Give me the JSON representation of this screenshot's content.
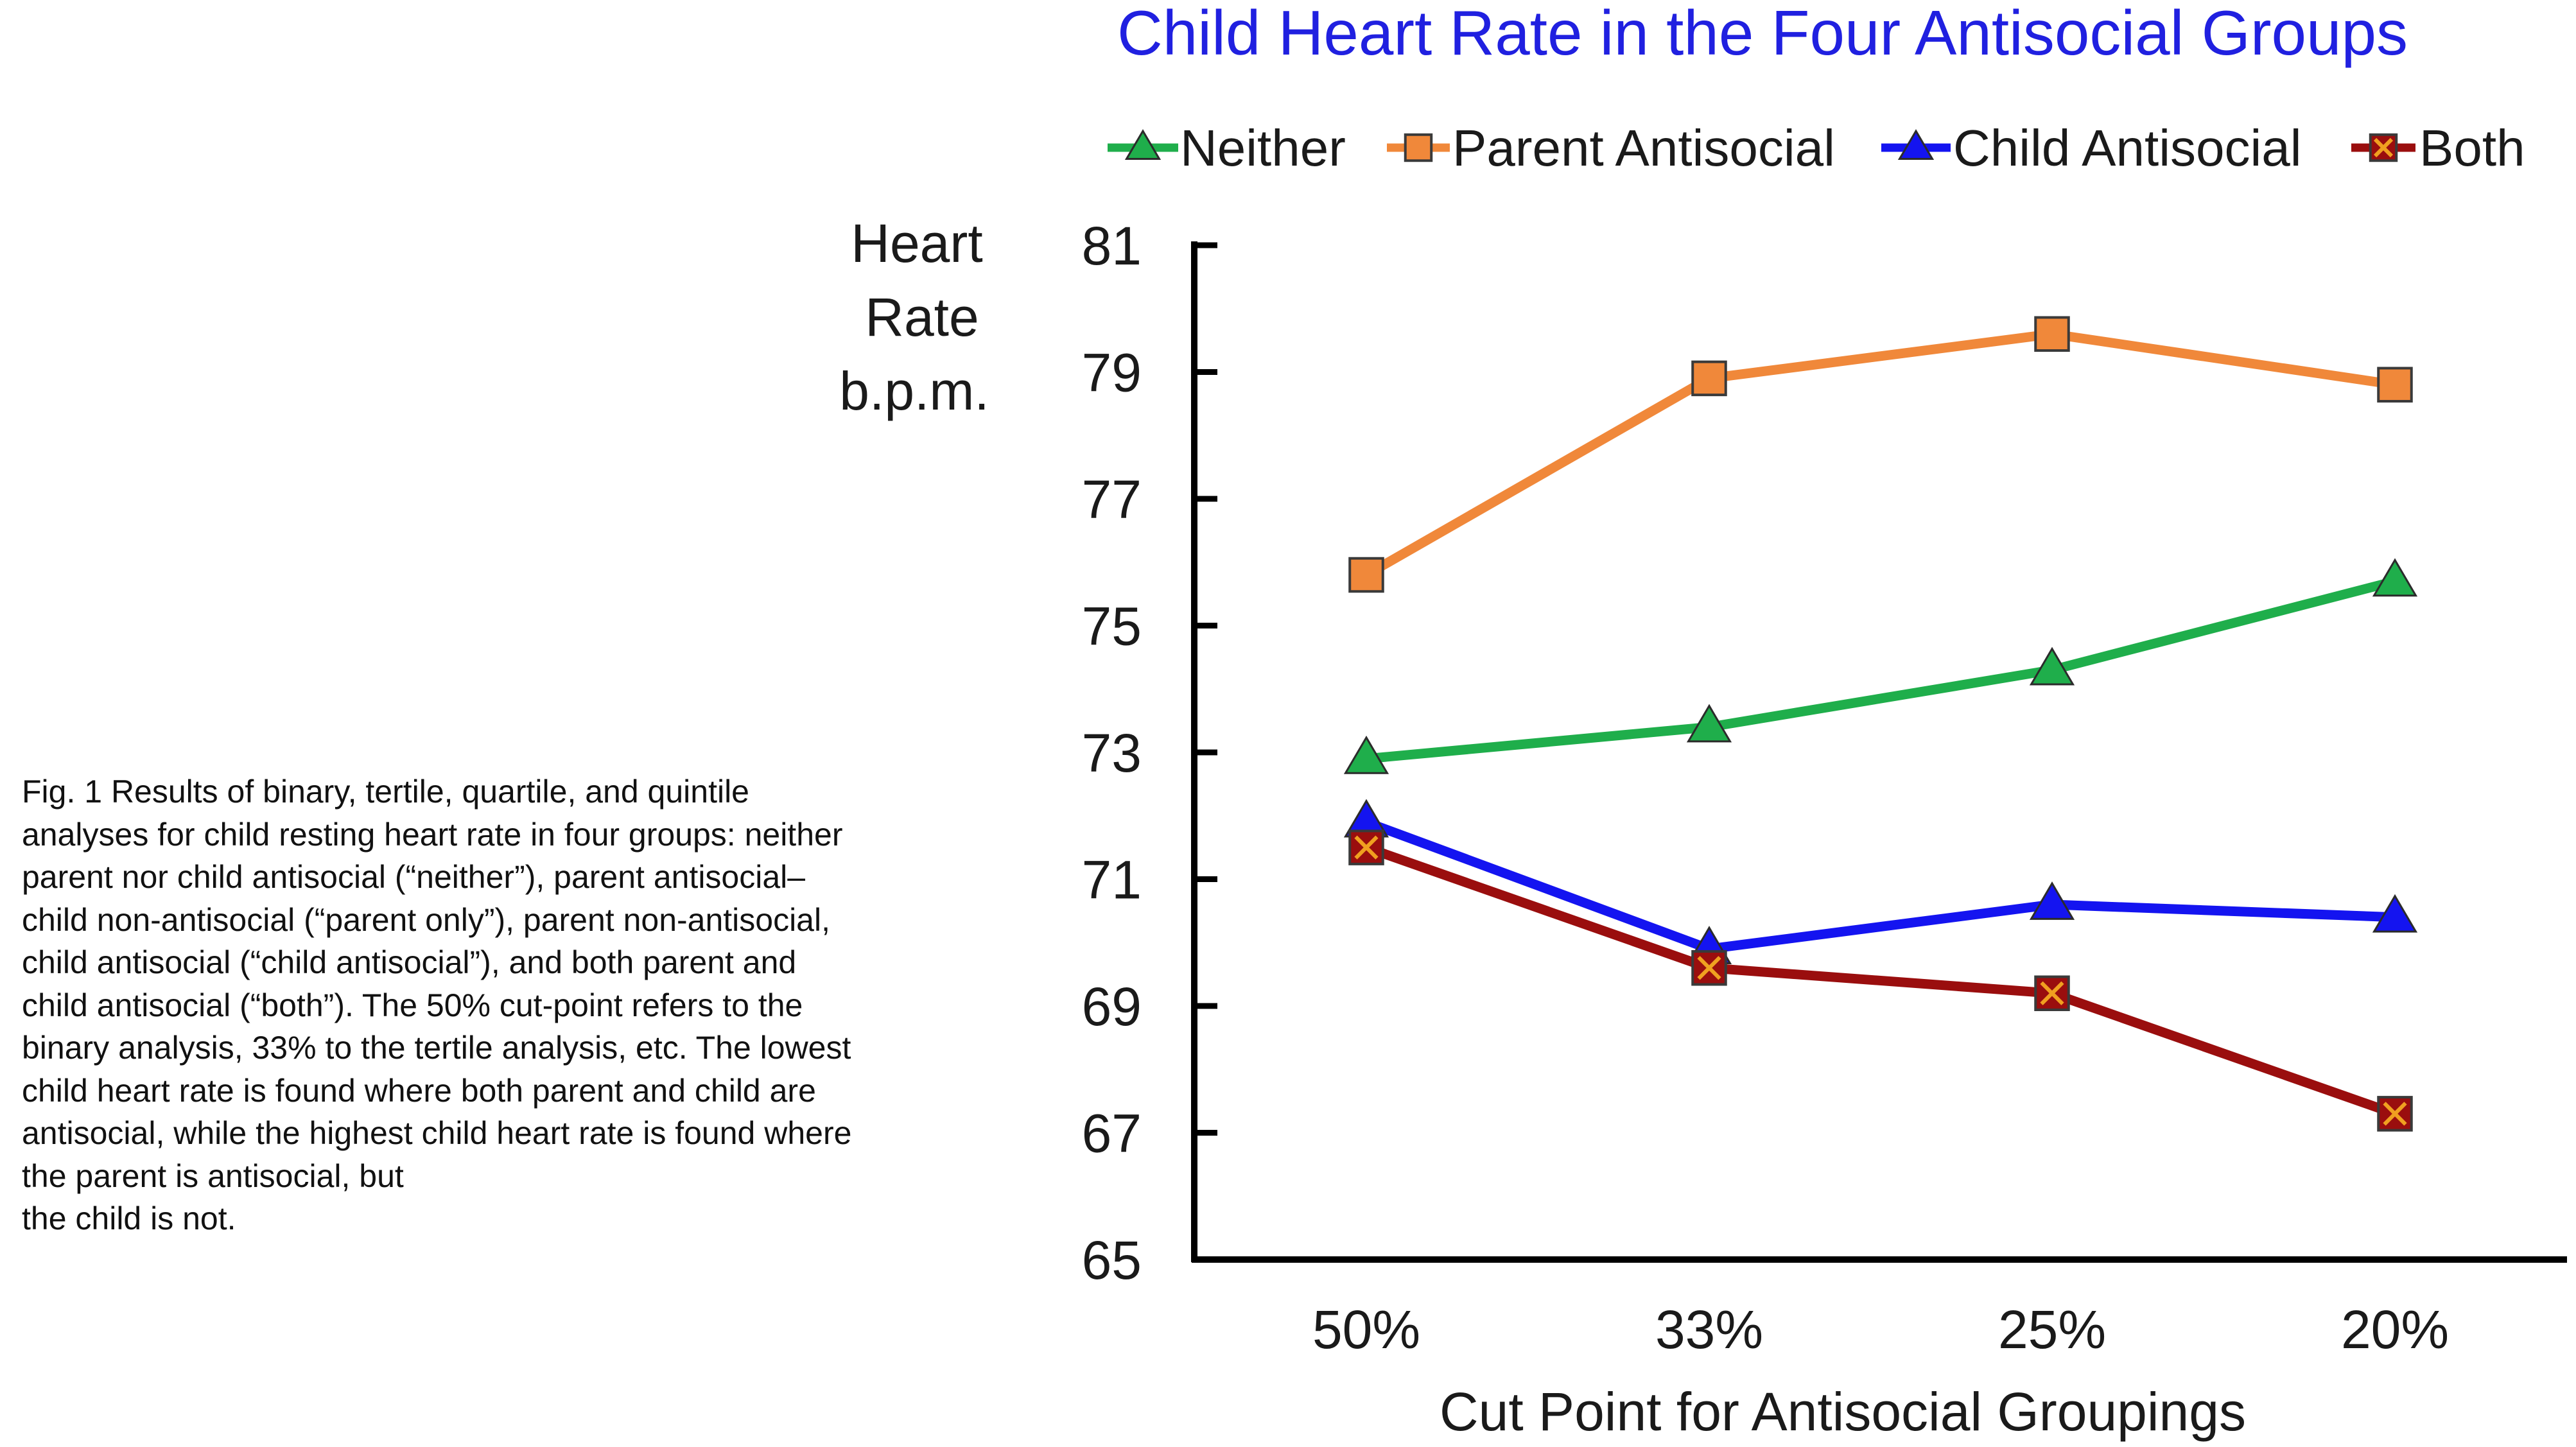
{
  "caption": "Fig. 1 Results of binary, tertile, quartile, and quintile analyses for child resting heart rate in four groups: neither parent nor child antisocial (“neither”), parent antisocial–child non-antisocial (“parent only”), parent non-antisocial, child antisocial (“child antisocial”), and both parent and child antisocial (“both”). The 50% cut-point refers to the binary analysis, 33% to the tertile analysis, etc. The lowest child heart rate is found where both parent and child are antisocial, while the highest child heart rate is found where the parent is antisocial, but\nthe child is not.",
  "chart_data": {
    "type": "line",
    "title": "Child Heart Rate in the Four Antisocial Groups",
    "xlabel": "Cut Point for Antisocial Groupings",
    "ylabel_lines": [
      "Heart",
      "Rate",
      "b.p.m."
    ],
    "categories": [
      "50%",
      "33%",
      "25%",
      "20%"
    ],
    "ylim": [
      65,
      81
    ],
    "yticks": [
      "65",
      "67",
      "69",
      "71",
      "73",
      "75",
      "77",
      "79",
      "81"
    ],
    "grid": false,
    "legend_position": "top",
    "series": [
      {
        "name": "Neither",
        "color": "#1fae4b",
        "marker": "triangle",
        "values": [
          72.9,
          73.4,
          74.3,
          75.7
        ]
      },
      {
        "name": "Parent Antisocial",
        "color": "#f0883a",
        "marker": "square",
        "values": [
          75.8,
          78.9,
          79.6,
          78.8
        ]
      },
      {
        "name": "Child Antisocial",
        "color": "#1414f0",
        "marker": "triangle",
        "values": [
          71.9,
          69.9,
          70.6,
          70.4
        ]
      },
      {
        "name": "Both",
        "color": "#9a0e0e",
        "marker": "x-square",
        "values": [
          71.5,
          69.6,
          69.2,
          67.3
        ]
      }
    ]
  }
}
